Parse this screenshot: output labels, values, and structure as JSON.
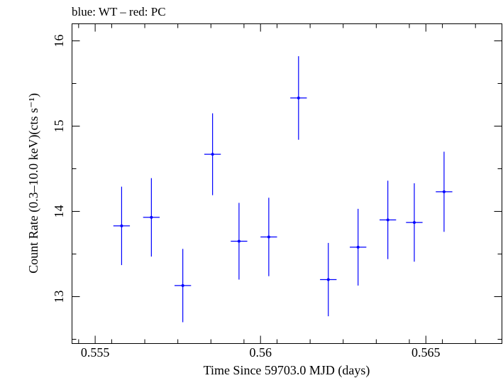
{
  "chart_data": {
    "type": "scatter",
    "title": "blue: WT – red: PC",
    "xlabel": "Time Since 59703.0 MJD (days)",
    "ylabel": "Count Rate (0.3–10.0 keV)(cts s⁻¹)",
    "xlim": [
      0.5543,
      0.5673
    ],
    "ylim": [
      12.45,
      16.2
    ],
    "x_ticks": [
      0.555,
      0.56,
      0.565
    ],
    "x_tick_labels": [
      "0.555",
      "0.56",
      "0.565"
    ],
    "y_ticks": [
      13,
      14,
      15,
      16
    ],
    "y_tick_labels": [
      "13",
      "14",
      "15",
      "16"
    ],
    "grid": false,
    "series": [
      {
        "color": "#0000ff",
        "points": [
          {
            "x": 0.5558,
            "xerr": 0.00025,
            "y": 13.83,
            "yerr": 0.46
          },
          {
            "x": 0.5567,
            "xerr": 0.00025,
            "y": 13.93,
            "yerr": 0.46
          },
          {
            "x": 0.55765,
            "xerr": 0.00025,
            "y": 13.13,
            "yerr": 0.43
          },
          {
            "x": 0.55855,
            "xerr": 0.00025,
            "y": 14.67,
            "yerr": 0.48
          },
          {
            "x": 0.55935,
            "xerr": 0.00025,
            "y": 13.65,
            "yerr": 0.45
          },
          {
            "x": 0.56025,
            "xerr": 0.00025,
            "y": 13.7,
            "yerr": 0.46
          },
          {
            "x": 0.56115,
            "xerr": 0.00025,
            "y": 15.33,
            "yerr": 0.49
          },
          {
            "x": 0.56205,
            "xerr": 0.00025,
            "y": 13.2,
            "yerr": 0.43
          },
          {
            "x": 0.56295,
            "xerr": 0.00025,
            "y": 13.58,
            "yerr": 0.45
          },
          {
            "x": 0.56385,
            "xerr": 0.00025,
            "y": 13.9,
            "yerr": 0.46
          },
          {
            "x": 0.56465,
            "xerr": 0.00025,
            "y": 13.87,
            "yerr": 0.46
          },
          {
            "x": 0.56555,
            "xerr": 0.00025,
            "y": 14.23,
            "yerr": 0.47
          }
        ]
      }
    ]
  }
}
